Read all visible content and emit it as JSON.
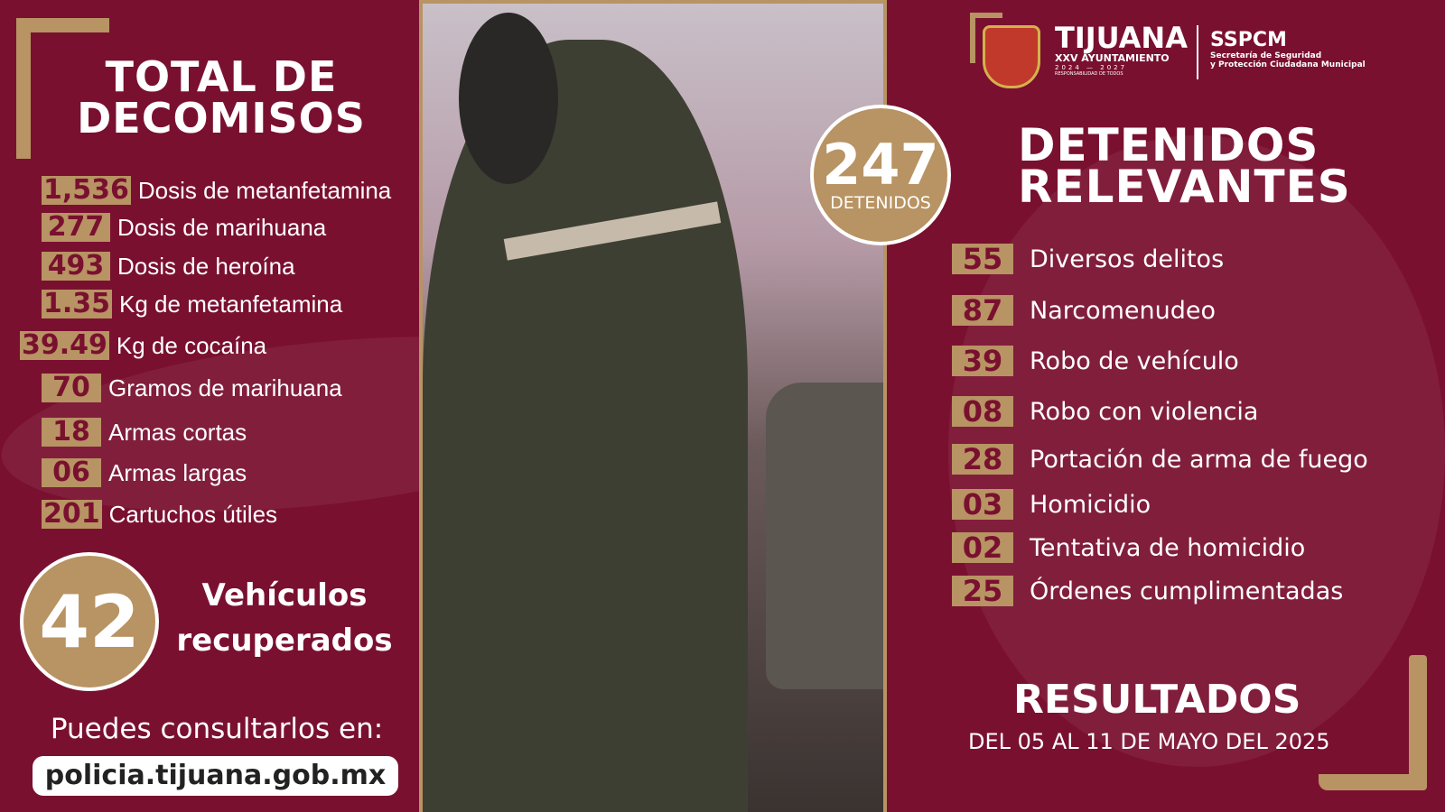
{
  "left": {
    "title_line1": "TOTAL DE",
    "title_line2": "DECOMISOS",
    "items": [
      {
        "value": "1,536",
        "label": "Dosis de metanfetamina"
      },
      {
        "value": "277",
        "label": "Dosis de marihuana"
      },
      {
        "value": "493",
        "label": "Dosis de heroína"
      },
      {
        "value": "1.35",
        "label": "Kg de metanfetamina"
      },
      {
        "value": "39.49",
        "label": "Kg de cocaína"
      },
      {
        "value": "70",
        "label": "Gramos de marihuana"
      },
      {
        "value": "18",
        "label": "Armas cortas"
      },
      {
        "value": "06",
        "label": "Armas largas"
      },
      {
        "value": "201",
        "label": "Cartuchos útiles"
      }
    ],
    "vehicles": {
      "value": "42",
      "line1": "Vehículos",
      "line2": "recuperados"
    },
    "consult": "Puedes consultarlos en:",
    "url": "policia.tijuana.gob.mx"
  },
  "detained": {
    "value": "247",
    "label": "DETENIDOS"
  },
  "header": {
    "city": "TIJUANA",
    "ayuntamiento": "XXV AYUNTAMIENTO",
    "years": "2024 — 2027",
    "motto": "RESPONSABILIDAD DE TODOS",
    "agency": "SSPCM",
    "agency_line1": "Secretaría de Seguridad",
    "agency_line2": "y Protección Ciudadana Municipal"
  },
  "right": {
    "title_line1": "DETENIDOS",
    "title_line2": "RELEVANTES",
    "items": [
      {
        "value": "55",
        "label": "Diversos delitos"
      },
      {
        "value": "87",
        "label": "Narcomenudeo"
      },
      {
        "value": "39",
        "label": "Robo de vehículo"
      },
      {
        "value": "08",
        "label": "Robo con violencia"
      },
      {
        "value": "28",
        "label": "Portación de arma de fuego"
      },
      {
        "value": "03",
        "label": "Homicidio"
      },
      {
        "value": "02",
        "label": "Tentativa de homicidio"
      },
      {
        "value": "25",
        "label": "Órdenes cumplimentadas"
      }
    ],
    "results": "RESULTADOS",
    "date": "DEL 05 AL 11 DE MAYO DEL 2025"
  },
  "colors": {
    "background": "#7a1030",
    "gold": "#b89363"
  }
}
